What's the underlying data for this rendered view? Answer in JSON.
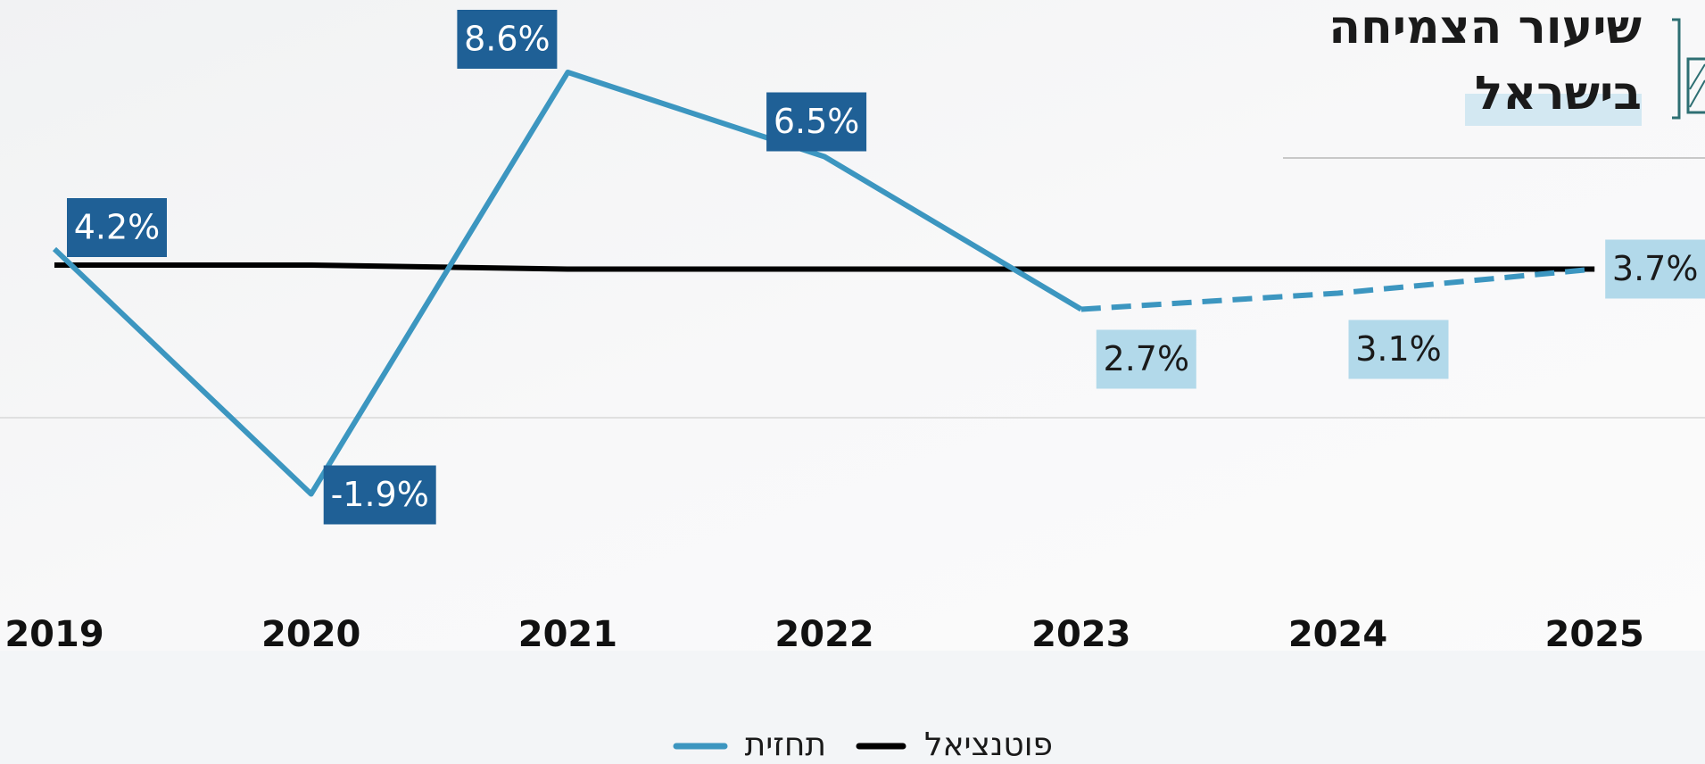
{
  "chart_data": {
    "type": "line",
    "title": [
      "שיעור הצמיחה",
      "בישראל"
    ],
    "categories": [
      "2019",
      "2020",
      "2021",
      "2022",
      "2023",
      "2024",
      "2025"
    ],
    "series": [
      {
        "name": "תחזית",
        "color": "#3c96c0",
        "values": [
          4.2,
          -1.9,
          8.6,
          6.5,
          2.7,
          3.1,
          3.7
        ],
        "value_labels": [
          "4.2%",
          "-1.9%",
          "8.6%",
          "6.5%",
          "2.7%",
          "3.1%",
          "3.7%"
        ],
        "forecast_from": 4
      },
      {
        "name": "פוטנציאל",
        "color": "#000000",
        "values": [
          3.8,
          3.8,
          3.7,
          3.7,
          3.7,
          3.7,
          3.7
        ]
      }
    ],
    "ylim": [
      -5.8,
      10.4
    ],
    "actual_label_color": "#1f6096",
    "forecast_label_color": "#b2d9ea"
  }
}
